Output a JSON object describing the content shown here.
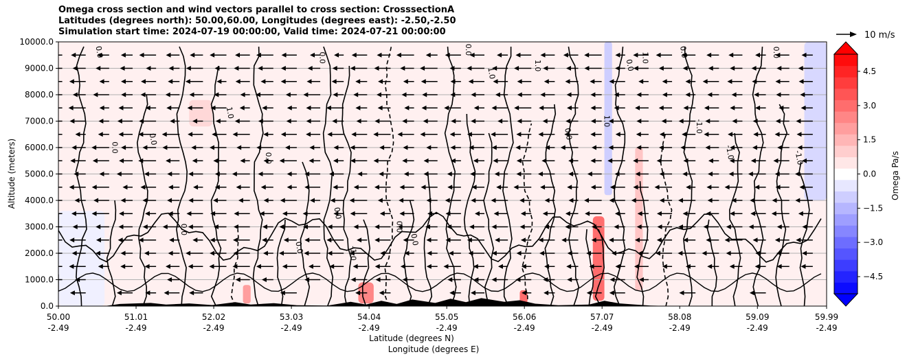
{
  "chart_data": {
    "type": "contour",
    "title_lines": [
      "Omega cross section and wind vectors parallel to cross section: CrosssectionA",
      "Latitudes (degrees north): 50.00,60.00, Longitudes (degrees east): -2.50,-2.50",
      "Simulation start time: 2024-07-19 00:00:00, Valid time: 2024-07-21 00:00:00"
    ],
    "ylabel": "Altitude (meters)",
    "xlabel_lat": "Latitude (degrees N)",
    "xlabel_lon": "Longitude (degrees E)",
    "ylim": [
      0,
      10000
    ],
    "y_ticks": [
      "0.0",
      "1000.0",
      "2000.0",
      "3000.0",
      "4000.0",
      "5000.0",
      "6000.0",
      "7000.0",
      "8000.0",
      "9000.0",
      "10000.0"
    ],
    "x_ticks": [
      {
        "lat": "50.00",
        "lon": "-2.49"
      },
      {
        "lat": "51.01",
        "lon": "-2.49"
      },
      {
        "lat": "52.02",
        "lon": "-2.49"
      },
      {
        "lat": "53.03",
        "lon": "-2.49"
      },
      {
        "lat": "54.04",
        "lon": "-2.49"
      },
      {
        "lat": "55.05",
        "lon": "-2.49"
      },
      {
        "lat": "56.06",
        "lon": "-2.49"
      },
      {
        "lat": "57.07",
        "lon": "-2.49"
      },
      {
        "lat": "58.08",
        "lon": "-2.49"
      },
      {
        "lat": "59.09",
        "lon": "-2.49"
      },
      {
        "lat": "59.99",
        "lon": "-2.49"
      }
    ],
    "colorbar": {
      "label": "Omega Pa/s",
      "range": [
        -5.25,
        5.25
      ],
      "ticks": [
        "4.5",
        "3.0",
        "1.5",
        "0.0",
        "−1.5",
        "−3.0",
        "−4.5"
      ],
      "positive_color": "#ff0000",
      "negative_color": "#0000ff"
    },
    "quiver_key": "10 m/s",
    "contour_labels": [
      "0.0",
      "1.0",
      "-1.0"
    ],
    "shaded_regions": [
      {
        "lat": [
          50.0,
          51.5
        ],
        "alt": [
          3600,
          10000
        ],
        "omega": 0.3
      },
      {
        "lat": [
          50.0,
          50.6
        ],
        "alt": [
          0,
          3600
        ],
        "omega": -0.3
      },
      {
        "lat": [
          51.7,
          52.0
        ],
        "alt": [
          6800,
          7800
        ],
        "omega": 0.8
      },
      {
        "lat": [
          52.4,
          52.5
        ],
        "alt": [
          100,
          800
        ],
        "omega": 2.0
      },
      {
        "lat": [
          53.9,
          54.1
        ],
        "alt": [
          100,
          900
        ],
        "omega": 2.5
      },
      {
        "lat": [
          56.0,
          56.1
        ],
        "alt": [
          100,
          600
        ],
        "omega": 3.0
      },
      {
        "lat": [
          56.95,
          57.1
        ],
        "alt": [
          200,
          3400
        ],
        "omega": 3.0
      },
      {
        "lat": [
          57.1,
          57.2
        ],
        "alt": [
          4200,
          10000
        ],
        "omega": -1.0
      },
      {
        "lat": [
          57.5,
          57.6
        ],
        "alt": [
          600,
          6000
        ],
        "omega": 1.2
      },
      {
        "lat": [
          59.7,
          59.99
        ],
        "alt": [
          4000,
          10000
        ],
        "omega": -0.8
      }
    ]
  }
}
